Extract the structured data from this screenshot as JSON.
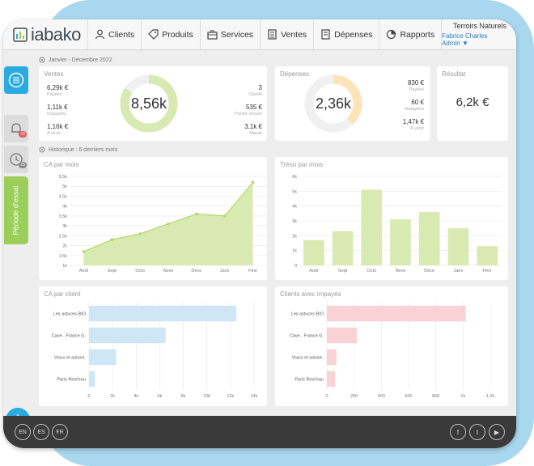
{
  "nav": {
    "logo": "iabako",
    "items": [
      {
        "label": "Clients",
        "icon": "person-icon"
      },
      {
        "label": "Produits",
        "icon": "tag-icon"
      },
      {
        "label": "Services",
        "icon": "briefcase-icon"
      },
      {
        "label": "Ventes",
        "icon": "ventes-icon"
      },
      {
        "label": "Dépenses",
        "icon": "depenses-icon"
      },
      {
        "label": "Rapports",
        "icon": "pie-icon"
      }
    ],
    "company": "Terroirs Naturels",
    "user": "Fabrice Charles Admin ▼"
  },
  "sidebar": {
    "notif_count": "10",
    "history_count": "15",
    "trial_label": "Période d'essai",
    "add_label": "+"
  },
  "period_label": "Janvier - Décembre 2022",
  "history_label": "Historique : 6 derniers mois",
  "ventes": {
    "title": "Ventes",
    "total": "8,56k",
    "donut_fraction": 0.84,
    "left": [
      {
        "value": "6,29k €",
        "label": "Payées"
      },
      {
        "value": "1,11k €",
        "label": "Impayées"
      },
      {
        "value": "1,16k €",
        "label": "A venir"
      }
    ],
    "right": [
      {
        "value": "3",
        "label": "Clients"
      },
      {
        "value": "535 €",
        "label": "Panier moyen"
      },
      {
        "value": "3,1k €",
        "label": "Marge"
      }
    ]
  },
  "depenses": {
    "title": "Dépenses",
    "total": "2,36k",
    "donut_fraction": 0.38,
    "right": [
      {
        "value": "830 €",
        "label": "Payées"
      },
      {
        "value": "60 €",
        "label": "Impayées"
      },
      {
        "value": "1,47k €",
        "label": "A venir"
      }
    ]
  },
  "resultat": {
    "title": "Résultat",
    "value": "6,2k €"
  },
  "colors": {
    "green": "#d8eab2",
    "green_line": "#b6d96b",
    "blue": "#cfe6f5",
    "pink": "#f9d2d5",
    "accent": "#29abe2",
    "orange": "#fde3b8"
  },
  "chart_data": [
    {
      "type": "area",
      "title": "CA par mois",
      "categories": [
        "Août",
        "Sept",
        "Octo",
        "Nove",
        "Déce",
        "Janv",
        "Févr"
      ],
      "values": [
        1700,
        2300,
        2600,
        3100,
        3600,
        3500,
        5200
      ],
      "ylim": [
        1000,
        5500
      ],
      "yticks": [
        "1k",
        "1.5k",
        "2k",
        "2.5k",
        "3k",
        "3.5k",
        "4k",
        "4.5k",
        "5k",
        "5.5k"
      ]
    },
    {
      "type": "bar",
      "title": "Tréso par mois",
      "categories": [
        "Août",
        "Sept",
        "Octo",
        "Nove",
        "Déce",
        "Janv",
        "Févr"
      ],
      "values": [
        1700,
        2300,
        5100,
        3100,
        3600,
        2500,
        1300
      ],
      "ylim": [
        0,
        6000
      ],
      "yticks": [
        "0",
        "1k",
        "2k",
        "3k",
        "4k",
        "5k",
        "6k"
      ]
    },
    {
      "type": "bar",
      "orientation": "horizontal",
      "title": "CA par client",
      "categories": [
        "Les astuces BIO",
        "Cave - France G.",
        "Vracs et astuce.",
        "Paris Rest'eau"
      ],
      "values": [
        12500,
        6500,
        2300,
        500
      ],
      "xlim": [
        0,
        14000
      ],
      "xticks": [
        "0",
        "2k",
        "4k",
        "6k",
        "8k",
        "10k",
        "12k",
        "14k"
      ]
    },
    {
      "type": "bar",
      "orientation": "horizontal",
      "title": "Clients avec impayés",
      "categories": [
        "Les astuces BIO",
        "Cave - France G.",
        "Vracs et astuce.",
        "Paris Rest'eau"
      ],
      "values": [
        1020,
        220,
        70,
        60
      ],
      "xlim": [
        0,
        1200
      ],
      "xticks": [
        "0",
        "200",
        "400",
        "600",
        "800",
        "1k",
        "1.2k"
      ]
    }
  ],
  "footer": {
    "langs": [
      "EN",
      "ES",
      "FR"
    ],
    "socials": [
      {
        "label": "f",
        "icon": "facebook-icon"
      },
      {
        "label": "t",
        "icon": "twitter-icon"
      },
      {
        "label": "▶",
        "icon": "youtube-icon"
      }
    ]
  }
}
